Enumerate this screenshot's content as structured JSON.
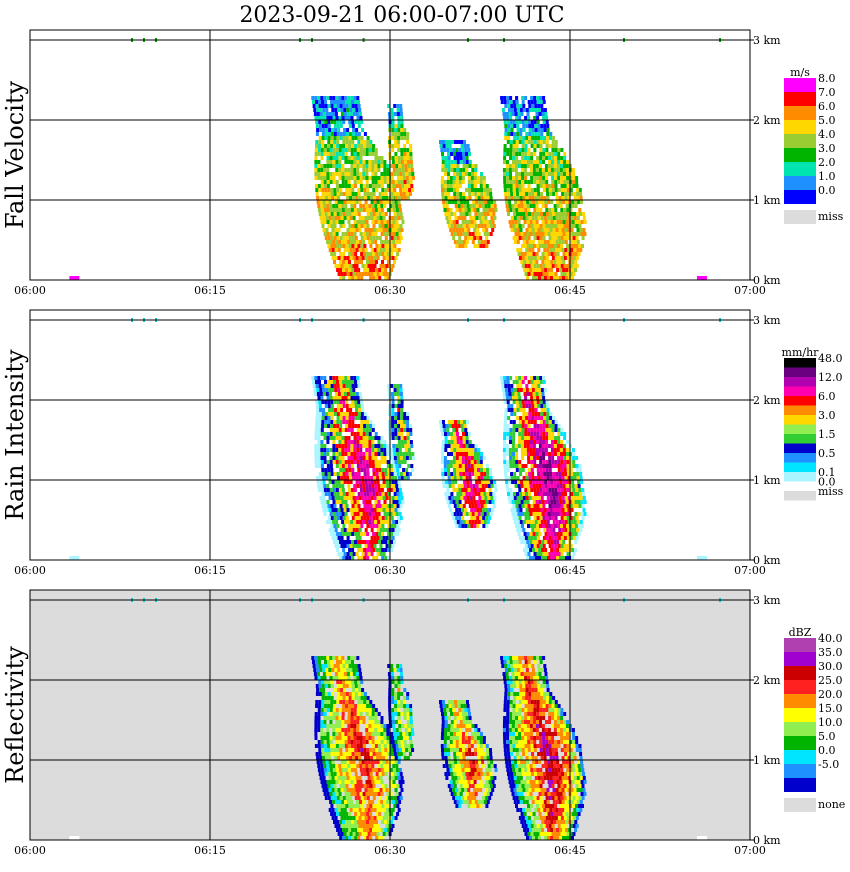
{
  "title": "2023-09-21   06:00-07:00 UTC",
  "x_ticks": [
    "06:00",
    "06:15",
    "06:30",
    "06:45",
    "07:00"
  ],
  "y_ticks": [
    "0 km",
    "1 km",
    "2 km",
    "3 km"
  ],
  "panels": [
    {
      "id": "fall-velocity",
      "label": "Fall Velocity",
      "unit": "m/s",
      "background": "#ffffff",
      "colorbar": [
        {
          "color": "#ff00ff",
          "label": "8.0"
        },
        {
          "color": "#ff0000",
          "label": "7.0"
        },
        {
          "color": "#ff8c00",
          "label": "6.0"
        },
        {
          "color": "#ffd700",
          "label": "5.0"
        },
        {
          "color": "#9acd32",
          "label": "4.0"
        },
        {
          "color": "#00b400",
          "label": "3.0"
        },
        {
          "color": "#00e5b0",
          "label": "2.0"
        },
        {
          "color": "#1e90ff",
          "label": "1.0"
        },
        {
          "color": "#0000ff",
          "label": "0.0"
        },
        {
          "color": "#dcdcdc",
          "label": "miss",
          "gap": true
        }
      ],
      "palette": [
        "#0000ff",
        "#1e90ff",
        "#00e5b0",
        "#00b400",
        "#9acd32",
        "#ffd700",
        "#ff8c00",
        "#ff0000",
        "#ff00ff"
      ]
    },
    {
      "id": "rain-intensity",
      "label": "Rain Intensity",
      "unit": "mm/hr",
      "background": "#ffffff",
      "colorbar": [
        {
          "color": "#000000",
          "label": "48.0"
        },
        {
          "color": "#6a0080"
        },
        {
          "color": "#b000b0",
          "label": "12.0"
        },
        {
          "color": "#ff00b0"
        },
        {
          "color": "#ff0000",
          "label": "6.0"
        },
        {
          "color": "#ff8c00"
        },
        {
          "color": "#ffd700",
          "label": "3.0"
        },
        {
          "color": "#90ee50"
        },
        {
          "color": "#32cd32",
          "label": "1.5"
        },
        {
          "color": "#0000cd"
        },
        {
          "color": "#1e90ff",
          "label": "0.5"
        },
        {
          "color": "#00e5ff"
        },
        {
          "color": "#aaf5ff",
          "label": "0.1"
        },
        {
          "color": "#ffffff",
          "label": "0.0"
        },
        {
          "color": "#dcdcdc",
          "label": "miss"
        }
      ],
      "palette": [
        "#aaf5ff",
        "#00e5ff",
        "#1e90ff",
        "#0000cd",
        "#32cd32",
        "#ffd700",
        "#ff0000",
        "#ff00b0",
        "#b000b0",
        "#6a0080"
      ]
    },
    {
      "id": "reflectivity",
      "label": "Reflectivity",
      "unit": "dBZ",
      "background": "#dcdcdc",
      "colorbar": [
        {
          "color": "#b040b0",
          "label": "40.0"
        },
        {
          "color": "#a000d0",
          "label": "35.0"
        },
        {
          "color": "#cc0000",
          "label": "30.0"
        },
        {
          "color": "#ff2020",
          "label": "25.0"
        },
        {
          "color": "#ff8c00",
          "label": "20.0"
        },
        {
          "color": "#ffff00",
          "label": "15.0"
        },
        {
          "color": "#90ee50",
          "label": "10.0"
        },
        {
          "color": "#00b400",
          "label": "5.0"
        },
        {
          "color": "#00e5ff",
          "label": "0.0"
        },
        {
          "color": "#1e90ff",
          "label": "-5.0"
        },
        {
          "color": "#0000cd"
        },
        {
          "color": "#dcdcdc",
          "label": "none",
          "gap": true
        }
      ],
      "palette": [
        "#0000cd",
        "#1e90ff",
        "#00e5ff",
        "#00b400",
        "#90ee50",
        "#ffff00",
        "#ff8c00",
        "#ff2020",
        "#cc0000",
        "#a000d0"
      ]
    }
  ],
  "chart_data": {
    "type": "heatmap",
    "x_range": [
      "06:00",
      "07:00"
    ],
    "y_range_km": [
      0,
      3.1
    ],
    "cells": [
      {
        "t_start_min": 22.5,
        "t_end_min": 29.5,
        "top_km": 2.3,
        "bottom_km": 0.0,
        "core": 0.75
      },
      {
        "t_start_min": 29.5,
        "t_end_min": 31.5,
        "top_km": 2.2,
        "bottom_km": 1.0,
        "core": 0.55
      },
      {
        "t_start_min": 33.5,
        "t_end_min": 37.8,
        "top_km": 1.75,
        "bottom_km": 0.4,
        "core": 0.75
      },
      {
        "t_start_min": 38.3,
        "t_end_min": 44.8,
        "top_km": 2.3,
        "bottom_km": 0.0,
        "core": 0.85
      }
    ],
    "surface_marks_min": [
      3.7,
      56.0
    ],
    "top_marks_min": [
      8.5,
      9.5,
      10.5,
      22.5,
      23.5,
      27.8,
      36.5,
      39.5,
      49.5,
      57.5
    ]
  }
}
